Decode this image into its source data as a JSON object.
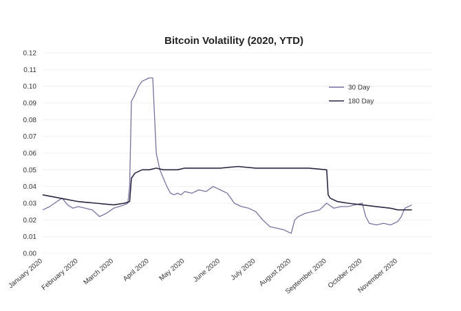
{
  "chart_data": {
    "type": "line",
    "title": "Bitcoin Volatility (2020, YTD)",
    "xlabel": "",
    "ylabel": "",
    "ylim": [
      0,
      0.12
    ],
    "yticks": [
      "0.00",
      "0.01",
      "0.02",
      "0.03",
      "0.04",
      "0.05",
      "0.06",
      "0.07",
      "0.08",
      "0.09",
      "0.10",
      "0.11",
      "0.12"
    ],
    "xticks": [
      "January 2020",
      "February 2020",
      "March 2020",
      "April 2020",
      "May 2020",
      "June 2020",
      "July 2020",
      "August 2020",
      "September 2020",
      "October 2020",
      "November 2020"
    ],
    "grid": false,
    "legend_position": "top-right",
    "series": [
      {
        "name": "30 Day",
        "color": "#7b6fa0",
        "x": [
          0,
          0.2,
          0.4,
          0.55,
          0.7,
          0.85,
          1,
          1.2,
          1.4,
          1.6,
          1.8,
          2,
          2.15,
          2.3,
          2.4,
          2.45,
          2.5,
          2.6,
          2.7,
          2.8,
          2.9,
          3,
          3.1,
          3.2,
          3.3,
          3.4,
          3.5,
          3.6,
          3.7,
          3.8,
          3.9,
          4,
          4.2,
          4.4,
          4.6,
          4.8,
          5,
          5.2,
          5.4,
          5.6,
          5.8,
          6,
          6.2,
          6.4,
          6.6,
          6.8,
          7,
          7.1,
          7.2,
          7.3,
          7.4,
          7.6,
          7.8,
          8,
          8.2,
          8.4,
          8.6,
          8.8,
          9,
          9.1,
          9.2,
          9.4,
          9.6,
          9.8,
          10,
          10.1,
          10.2,
          10.3,
          10.4
        ],
        "y": [
          0.026,
          0.028,
          0.031,
          0.033,
          0.029,
          0.027,
          0.028,
          0.027,
          0.026,
          0.022,
          0.024,
          0.027,
          0.028,
          0.029,
          0.03,
          0.04,
          0.091,
          0.095,
          0.1,
          0.103,
          0.104,
          0.105,
          0.105,
          0.06,
          0.05,
          0.045,
          0.04,
          0.036,
          0.035,
          0.036,
          0.035,
          0.037,
          0.036,
          0.038,
          0.037,
          0.04,
          0.038,
          0.036,
          0.03,
          0.028,
          0.027,
          0.025,
          0.02,
          0.016,
          0.015,
          0.014,
          0.012,
          0.02,
          0.022,
          0.023,
          0.024,
          0.025,
          0.026,
          0.03,
          0.027,
          0.028,
          0.028,
          0.029,
          0.03,
          0.022,
          0.018,
          0.017,
          0.018,
          0.017,
          0.019,
          0.022,
          0.027,
          0.028,
          0.029
        ]
      },
      {
        "name": "180 Day",
        "color": "#2b2540",
        "x": [
          0,
          0.5,
          1,
          1.5,
          2,
          2.3,
          2.45,
          2.5,
          2.6,
          2.8,
          3,
          3.2,
          3.4,
          3.6,
          3.8,
          4,
          4.5,
          5,
          5.5,
          6,
          6.5,
          7,
          7.5,
          8,
          8.04,
          8.1,
          8.3,
          8.6,
          9,
          9.4,
          9.8,
          10,
          10.2,
          10.4
        ],
        "y": [
          0.035,
          0.033,
          0.031,
          0.03,
          0.029,
          0.03,
          0.031,
          0.045,
          0.048,
          0.05,
          0.05,
          0.051,
          0.05,
          0.05,
          0.05,
          0.051,
          0.051,
          0.051,
          0.052,
          0.051,
          0.051,
          0.051,
          0.051,
          0.05,
          0.035,
          0.033,
          0.031,
          0.03,
          0.029,
          0.028,
          0.027,
          0.026,
          0.026,
          0.026
        ]
      }
    ]
  }
}
